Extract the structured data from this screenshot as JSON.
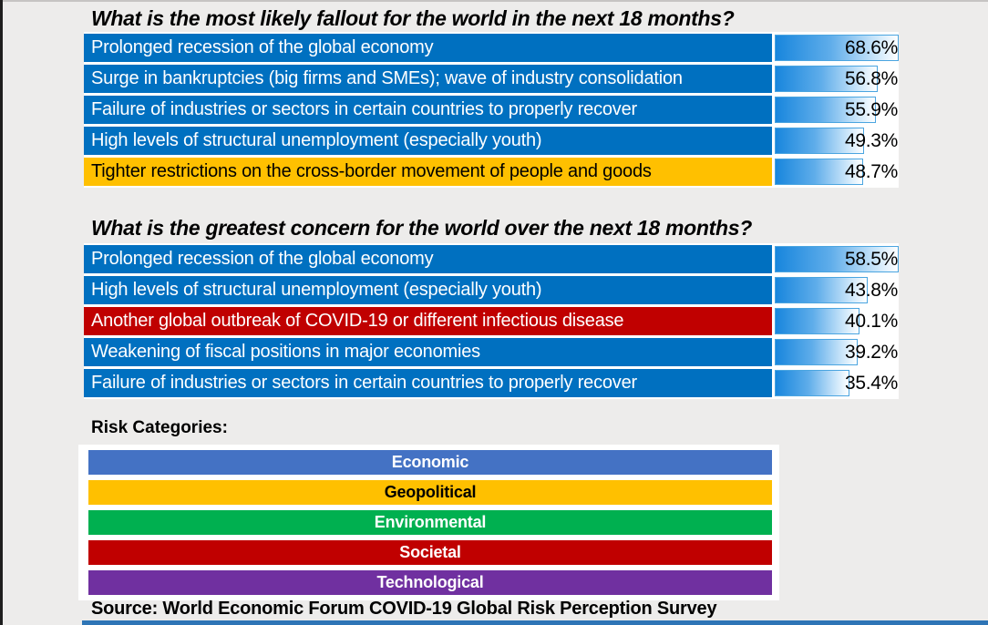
{
  "colors": {
    "background": "#EDECEB",
    "category": {
      "Economic": "#0070C0",
      "Geopolitical": "#FFC000",
      "Societal": "#C00000",
      "Environmental": "#00B050",
      "Technological": "#7030A0"
    },
    "bar_fill_start": "#1886DD",
    "bar_fill_end": "#FEFFFF",
    "bar_border": "#4BA5E0",
    "accent_strip": "#2E75B6"
  },
  "chart_data": [
    {
      "type": "bar",
      "orientation": "horizontal",
      "title": "What is the most likely fallout for the world in the next 18 months?",
      "unit": "%",
      "xlim": [
        0,
        68.6
      ],
      "axis_max": 68.6,
      "grid": false,
      "items": [
        {
          "label": "Prolonged recession of the global economy",
          "category": "Economic",
          "value": 68.6,
          "value_label": "68.6%"
        },
        {
          "label": "Surge in bankruptcies (big firms and SMEs); wave of industry consolidation",
          "category": "Economic",
          "value": 56.8,
          "value_label": "56.8%"
        },
        {
          "label": "Failure of industries or sectors in certain countries to properly recover",
          "category": "Economic",
          "value": 55.9,
          "value_label": "55.9%"
        },
        {
          "label": "High levels of structural unemployment (especially youth)",
          "category": "Economic",
          "value": 49.3,
          "value_label": "49.3%"
        },
        {
          "label": "Tighter restrictions on the cross-border movement of people and goods",
          "category": "Geopolitical",
          "value": 48.7,
          "value_label": "48.7%"
        }
      ]
    },
    {
      "type": "bar",
      "orientation": "horizontal",
      "title": "What is the greatest concern for the world over the next 18 months?",
      "unit": "%",
      "xlim": [
        0,
        58.5
      ],
      "axis_max": 58.5,
      "grid": false,
      "items": [
        {
          "label": "Prolonged recession of the global economy",
          "category": "Economic",
          "value": 58.5,
          "value_label": "58.5%"
        },
        {
          "label": "High levels of structural unemployment (especially youth)",
          "category": "Economic",
          "value": 43.8,
          "value_label": "43.8%"
        },
        {
          "label": "Another global outbreak of COVID-19 or different infectious disease",
          "category": "Societal",
          "value": 40.1,
          "value_label": "40.1%"
        },
        {
          "label": "Weakening of fiscal positions in major economies",
          "category": "Economic",
          "value": 39.2,
          "value_label": "39.2%"
        },
        {
          "label": "Failure of industries or sectors in certain countries to properly recover",
          "category": "Economic",
          "value": 35.4,
          "value_label": "35.4%"
        }
      ]
    }
  ],
  "legend": {
    "position": "bottom",
    "title": "Risk Categories:",
    "items": [
      {
        "label": "Economic",
        "color": "#4472C4",
        "text_color": "#FFFFFF"
      },
      {
        "label": "Geopolitical",
        "color": "#FFC000",
        "text_color": "#000000"
      },
      {
        "label": "Environmental",
        "color": "#00B050",
        "text_color": "#FFFFFF"
      },
      {
        "label": "Societal",
        "color": "#C00000",
        "text_color": "#FFFFFF"
      },
      {
        "label": "Technological",
        "color": "#7030A0",
        "text_color": "#FFFFFF"
      }
    ]
  },
  "source_note": "Source: World Economic Forum COVID-19 Global Risk Perception Survey"
}
